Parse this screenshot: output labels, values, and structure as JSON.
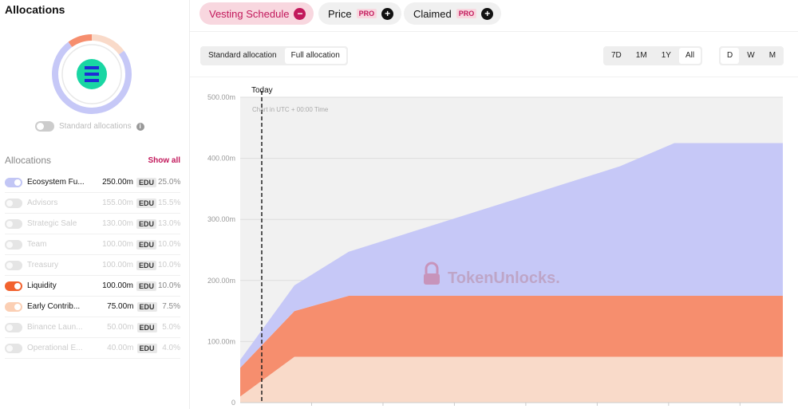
{
  "sidebar": {
    "title": "Allocations",
    "standard_toggle_label": "Standard allocations",
    "list_label": "Allocations",
    "show_all": "Show all",
    "unit": "EDU",
    "rows": [
      {
        "name": "Ecosystem Fu...",
        "amount": "250.00m",
        "pct": "25.0%",
        "enabled": true,
        "color": "#c2c6f5"
      },
      {
        "name": "Advisors",
        "amount": "155.00m",
        "pct": "15.5%",
        "enabled": false,
        "color": "#e5e5e5"
      },
      {
        "name": "Strategic Sale",
        "amount": "130.00m",
        "pct": "13.0%",
        "enabled": false,
        "color": "#e5e5e5"
      },
      {
        "name": "Team",
        "amount": "100.00m",
        "pct": "10.0%",
        "enabled": false,
        "color": "#e5e5e5"
      },
      {
        "name": "Treasury",
        "amount": "100.00m",
        "pct": "10.0%",
        "enabled": false,
        "color": "#e5e5e5"
      },
      {
        "name": "Liquidity",
        "amount": "100.00m",
        "pct": "10.0%",
        "enabled": true,
        "color": "#f2622e"
      },
      {
        "name": "Early Contrib...",
        "amount": "75.00m",
        "pct": "7.5%",
        "enabled": true,
        "color": "#fbcfb4"
      },
      {
        "name": "Binance Laun...",
        "amount": "50.00m",
        "pct": "5.0%",
        "enabled": false,
        "color": "#e5e5e5"
      },
      {
        "name": "Operational E...",
        "amount": "40.00m",
        "pct": "4.0%",
        "enabled": false,
        "color": "#e5e5e5"
      }
    ]
  },
  "topbar": {
    "vesting": "Vesting Schedule",
    "price": "Price",
    "claimed": "Claimed",
    "pro": "PRO"
  },
  "controls": {
    "allocation_options": [
      "Standard allocation",
      "Full allocation"
    ],
    "allocation_selected": "Full allocation",
    "range_options": [
      "7D",
      "1M",
      "1Y",
      "All"
    ],
    "range_selected": "All",
    "interval_options": [
      "D",
      "W",
      "M"
    ],
    "interval_selected": "D"
  },
  "colors": {
    "ecosystem": "#c6c8f7",
    "liquidity": "#f68e6e",
    "early": "#f9dac9",
    "accent": "#c2185b"
  },
  "chart_data": {
    "type": "area",
    "stacked": true,
    "today_label": "Today",
    "note": "Chart in UTC + 00:00 Time",
    "watermark": "TokenUnlocks.",
    "ylim": [
      0,
      500
    ],
    "y_ticks": [
      "0",
      "100.00m",
      "200.00m",
      "300.00m",
      "400.00m",
      "500.00m"
    ],
    "x": [
      0,
      1,
      2,
      3,
      4,
      5,
      6,
      7,
      8,
      9,
      10
    ],
    "series": [
      {
        "name": "Early Contrib...",
        "values": [
          10,
          75,
          75,
          75,
          75,
          75,
          75,
          75,
          75,
          75,
          75
        ]
      },
      {
        "name": "Liquidity",
        "values": [
          47,
          75,
          100,
          100,
          100,
          100,
          100,
          100,
          100,
          100,
          100
        ]
      },
      {
        "name": "Ecosystem Fu...",
        "values": [
          13,
          42,
          72,
          100,
          128,
          156,
          184,
          212,
          250,
          250,
          250
        ]
      }
    ]
  }
}
